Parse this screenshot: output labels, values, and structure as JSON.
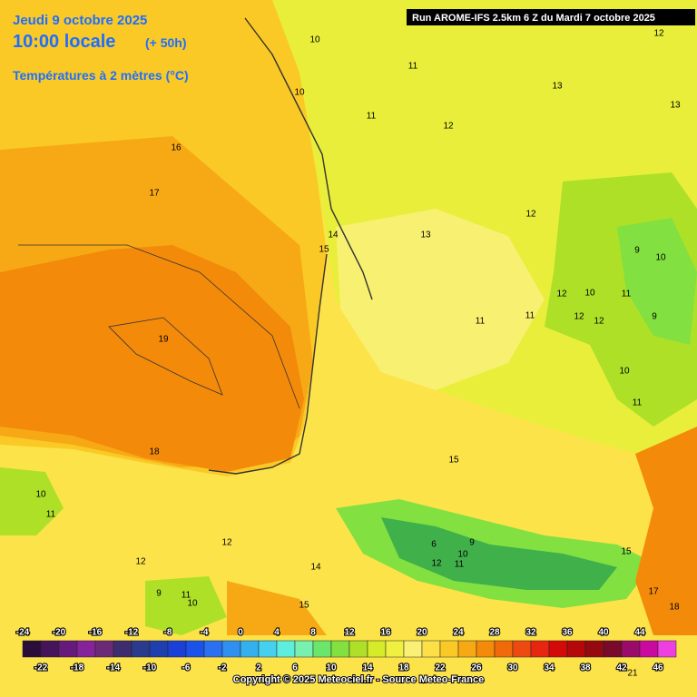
{
  "header": {
    "date": "Jeudi 9 octobre 2025",
    "time": "10:00 locale",
    "lead": "(+ 50h)",
    "field": "Températures à 2 mètres (°C)",
    "run": "Run AROME-IFS 2.5km 6 Z du Mardi 7 octobre 2025"
  },
  "contour_labels": [
    10,
    11,
    10,
    11,
    12,
    13,
    13,
    12,
    16,
    17,
    14,
    15,
    13,
    12,
    10,
    9,
    12,
    10,
    11,
    12,
    12,
    9,
    11,
    11,
    19,
    10,
    11,
    18,
    15,
    10,
    11,
    12,
    12,
    9,
    11,
    10,
    15,
    12,
    11,
    10,
    9,
    6,
    14,
    15,
    17,
    18,
    21
  ],
  "legend": {
    "colors": [
      "#2a0d38",
      "#46145a",
      "#651a7c",
      "#84239a",
      "#6b2a78",
      "#3d2c70",
      "#2a3a8c",
      "#1e3fb0",
      "#1a40d8",
      "#1b52ea",
      "#2a70f0",
      "#2f90f0",
      "#35b0ef",
      "#45d0f0",
      "#5eeedd",
      "#78f0b0",
      "#6ae66c",
      "#82e040",
      "#aee028",
      "#d6ec2a",
      "#f0f040",
      "#fbf076",
      "#fde048",
      "#fbc925",
      "#f7a915",
      "#f48a0a",
      "#f06a0a",
      "#ec4a10",
      "#e62610",
      "#d40a0a",
      "#b4080a",
      "#940a10",
      "#7a0a2c",
      "#9a0a6a",
      "#c80aa0",
      "#ee40e0"
    ],
    "top_labels": [
      -24,
      -20,
      -16,
      -12,
      -8,
      -4,
      0,
      4,
      8,
      12,
      16,
      20,
      24,
      28,
      32,
      36,
      40,
      44
    ],
    "bottom_labels": [
      -22,
      -18,
      -14,
      -10,
      -6,
      -2,
      2,
      6,
      10,
      14,
      18,
      22,
      26,
      30,
      34,
      38,
      42,
      46
    ]
  },
  "copyright": "Copyright © 2025 Meteociel.fr - Source Meteo-France"
}
